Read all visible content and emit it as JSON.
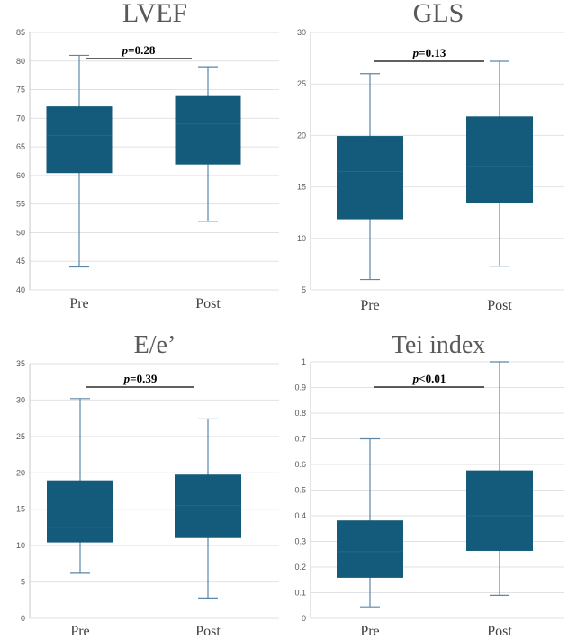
{
  "colors": {
    "box_fill": "#145a7a",
    "whisker": "#5b87a8",
    "median": "#1e6a8c",
    "grid": "#e2e2e2",
    "axis": "#c8c8c8",
    "pbar": "#000000"
  },
  "chart_data": [
    {
      "type": "boxplot",
      "title": "LVEF",
      "categories": [
        "Pre",
        "Post"
      ],
      "ylim": [
        40,
        85
      ],
      "yticks": [
        40,
        45,
        50,
        55,
        60,
        65,
        70,
        75,
        80,
        85
      ],
      "boxes": [
        {
          "category": "Pre",
          "min": 44,
          "q1": 60.5,
          "median": 67,
          "q3": 72,
          "max": 81
        },
        {
          "category": "Post",
          "min": 52,
          "q1": 62,
          "median": 69,
          "q3": 73.8,
          "max": 79
        }
      ],
      "p_italic": "p",
      "p_rest": "=0.28",
      "grid": true
    },
    {
      "type": "boxplot",
      "title": "GLS",
      "categories": [
        "Pre",
        "Post"
      ],
      "ylim": [
        5,
        30
      ],
      "yticks": [
        5,
        10,
        15,
        20,
        25,
        30
      ],
      "boxes": [
        {
          "category": "Pre",
          "min": 6,
          "q1": 11.9,
          "median": 16.5,
          "q3": 19.9,
          "max": 26
        },
        {
          "category": "Post",
          "min": 7.3,
          "q1": 13.5,
          "median": 17,
          "q3": 21.8,
          "max": 27.2
        }
      ],
      "p_italic": "p",
      "p_rest": "=0.13",
      "grid": true
    },
    {
      "type": "boxplot",
      "title": "E/e’",
      "categories": [
        "Pre",
        "Post"
      ],
      "ylim": [
        0,
        35
      ],
      "yticks": [
        0,
        5,
        10,
        15,
        20,
        25,
        30,
        35
      ],
      "boxes": [
        {
          "category": "Pre",
          "min": 6.2,
          "q1": 10.5,
          "median": 12.5,
          "q3": 18.9,
          "max": 30.2
        },
        {
          "category": "Post",
          "min": 2.8,
          "q1": 11.1,
          "median": 15.5,
          "q3": 19.7,
          "max": 27.4
        }
      ],
      "p_italic": "p",
      "p_rest": "=0.39",
      "grid": true
    },
    {
      "type": "boxplot",
      "title": "Tei index",
      "categories": [
        "Pre",
        "Post"
      ],
      "ylim": [
        0,
        1
      ],
      "yticks": [
        0,
        0.1,
        0.2,
        0.3,
        0.4,
        0.5,
        0.6,
        0.7,
        0.8,
        0.9,
        1
      ],
      "boxes": [
        {
          "category": "Pre",
          "min": 0.045,
          "q1": 0.16,
          "median": 0.26,
          "q3": 0.38,
          "max": 0.7
        },
        {
          "category": "Post",
          "min": 0.09,
          "q1": 0.265,
          "median": 0.4,
          "q3": 0.575,
          "max": 1.0
        }
      ],
      "p_italic": "p",
      "p_rest": "<0.01",
      "grid": true
    }
  ]
}
